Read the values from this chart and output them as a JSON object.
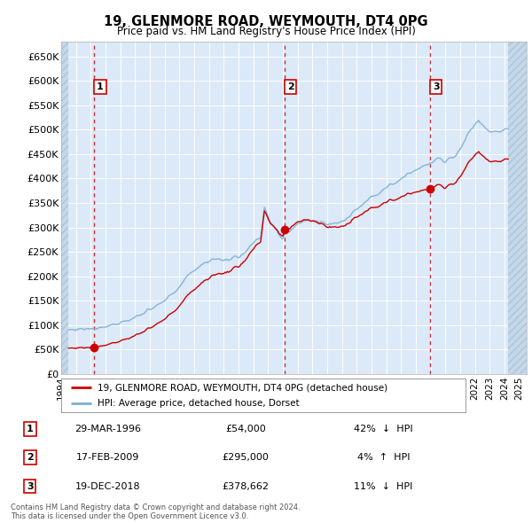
{
  "title": "19, GLENMORE ROAD, WEYMOUTH, DT4 0PG",
  "subtitle": "Price paid vs. HM Land Registry's House Price Index (HPI)",
  "ylim": [
    0,
    680000
  ],
  "yticks": [
    0,
    50000,
    100000,
    150000,
    200000,
    250000,
    300000,
    350000,
    400000,
    450000,
    500000,
    550000,
    600000,
    650000
  ],
  "ytick_labels": [
    "£0",
    "£50K",
    "£100K",
    "£150K",
    "£200K",
    "£250K",
    "£300K",
    "£350K",
    "£400K",
    "£450K",
    "£500K",
    "£550K",
    "£600K",
    "£650K"
  ],
  "xlim_start": 1994.0,
  "xlim_end": 2025.5,
  "plot_bg": "#dce9f8",
  "grid_color": "#ffffff",
  "sale_color": "#cc0000",
  "hpi_color": "#7bafd4",
  "vline_color": "#cc0000",
  "box_edge_color": "#cc0000",
  "legend_label_sale": "19, GLENMORE ROAD, WEYMOUTH, DT4 0PG (detached house)",
  "legend_label_hpi": "HPI: Average price, detached house, Dorset",
  "footer": "Contains HM Land Registry data © Crown copyright and database right 2024.\nThis data is licensed under the Open Government Licence v3.0.",
  "transactions": [
    {
      "num": 1,
      "date": "29-MAR-1996",
      "price": 54000,
      "pct": "42%",
      "dir": "↓",
      "year_x": 1996.24
    },
    {
      "num": 2,
      "date": "17-FEB-2009",
      "price": 295000,
      "pct": "4%",
      "dir": "↑",
      "year_x": 2009.13
    },
    {
      "num": 3,
      "date": "19-DEC-2018",
      "price": 378662,
      "pct": "11%",
      "dir": "↓",
      "year_x": 2018.97
    }
  ],
  "hpi_data_end": 2024.25,
  "hpi_data_start": 1994.5
}
